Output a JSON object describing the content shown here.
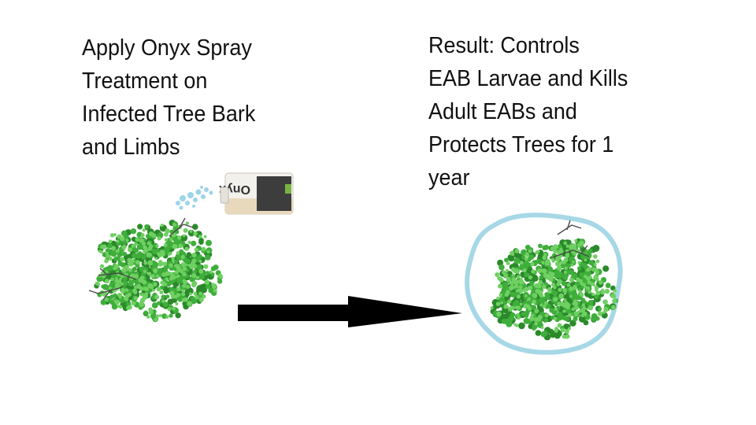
{
  "left_caption": "Apply Onyx Spray\nTreatment on\nInfected Tree Bark\nand Limbs",
  "right_caption": "Result: Controls\nEAB Larvae and Kills\nAdult EABs and\nProtects Trees for 1\nyear",
  "bottle_label": "Onyx",
  "colors": {
    "foliage": "#3fae3b",
    "foliage_dark": "#2a8a2a",
    "foliage_light": "#6fd062",
    "protective_outline": "#a6d8e6",
    "spray_mist": "#8ccde4",
    "arrow": "#000000"
  }
}
